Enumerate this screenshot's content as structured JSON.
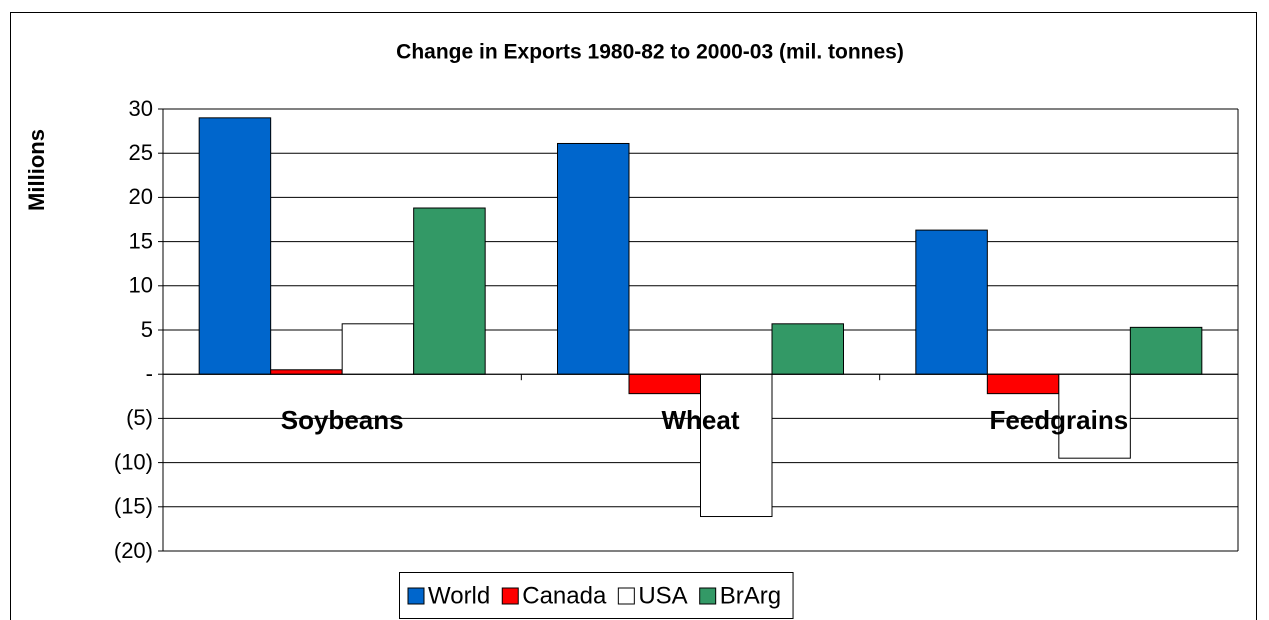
{
  "chart_data": {
    "type": "bar",
    "title": "Change in Exports 1980-82 to 2000-03 (mil. tonnes)",
    "y_label": "Millions",
    "categories": [
      "Soybeans",
      "Wheat",
      "Feedgrains"
    ],
    "series": [
      {
        "name": "World",
        "color": "#0066cc",
        "values": [
          29,
          26.1,
          16.3
        ]
      },
      {
        "name": "Canada",
        "color": "#ff0000",
        "values": [
          0.5,
          -2.2,
          -2.2
        ]
      },
      {
        "name": "USA",
        "color": "#ffffff",
        "values": [
          5.7,
          -16.1,
          -9.5
        ]
      },
      {
        "name": "BrArg",
        "color": "#339966",
        "values": [
          18.8,
          5.7,
          5.3
        ]
      }
    ],
    "ylim": [
      -20,
      30
    ],
    "yticks": [
      30,
      25,
      20,
      15,
      10,
      5,
      {
        "value": 0,
        "label": "-"
      },
      {
        "value": -5,
        "label": "(5)"
      },
      {
        "value": -10,
        "label": "(10)"
      },
      {
        "value": -15,
        "label": "(15)"
      },
      {
        "value": -20,
        "label": "(20)"
      }
    ],
    "grid": true,
    "legend": "bottom"
  }
}
